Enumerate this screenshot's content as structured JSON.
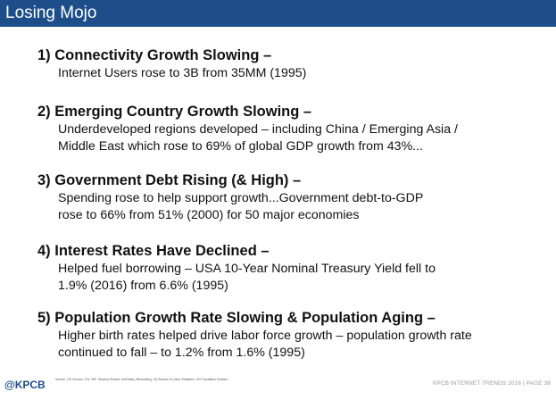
{
  "header": {
    "title": "Losing Mojo"
  },
  "points": [
    {
      "heading": "1) Connectivity Growth Slowing –",
      "lines": [
        "Internet Users rose to 3B from 35MM (1995)"
      ]
    },
    {
      "heading": "2) Emerging Country Growth Slowing –",
      "lines": [
        "Underdeveloped regions developed – including China / Emerging Asia /",
        "Middle East which rose to 69% of global GDP growth from 43%..."
      ]
    },
    {
      "heading": "3) Government Debt Rising (& High) –",
      "lines": [
        "Spending rose to help support growth...Government debt-to-GDP",
        "rose to 66% from 51% (2000) for 50 major economies"
      ]
    },
    {
      "heading": "4) Interest Rates Have Declined –",
      "lines": [
        "Helped fuel borrowing – USA 10-Year Nominal Treasury Yield fell to",
        "1.9% (2016) from 6.6% (1995)"
      ]
    },
    {
      "heading": "5) Population Growth Rate Slowing & Population Aging –",
      "lines": [
        "Higher birth rates helped drive labor force growth – population growth rate",
        "continued to fall – to 1.2% from 1.6% (1995)"
      ]
    }
  ],
  "footer": {
    "logo": "@KPCB",
    "source": "Source: US Census, ITU, IMF, Stephen Roach, McKinsey, Bloomberg, US Bureau of Labor Statistics, UN Population Division",
    "brand": "KPCB INTERNET TRENDS 2016",
    "separator": "|",
    "page": "PAGE 38"
  }
}
